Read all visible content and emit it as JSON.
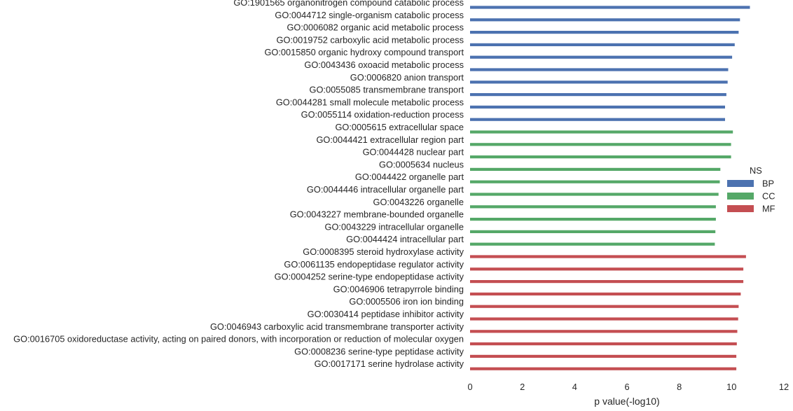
{
  "chart_data": {
    "type": "bar",
    "orientation": "horizontal",
    "xlabel": "p value(-log10)",
    "ylabel": "",
    "xlim": [
      0,
      12
    ],
    "xticks": [
      "0",
      "2",
      "4",
      "6",
      "8",
      "10",
      "12"
    ],
    "grid": false,
    "legend": {
      "title": "NS",
      "placement": "right",
      "entries": [
        {
          "name": "BP",
          "color": "#4c72b0"
        },
        {
          "name": "CC",
          "color": "#55a868"
        },
        {
          "name": "MF",
          "color": "#c44e52"
        }
      ]
    },
    "categories": [
      {
        "label": "GO:1901565 organonitrogen compound catabolic process",
        "ns": "BP",
        "value": 10.7
      },
      {
        "label": "GO:0044712 single-organism catabolic process",
        "ns": "BP",
        "value": 10.32
      },
      {
        "label": "GO:0006082 organic acid metabolic process",
        "ns": "BP",
        "value": 10.27
      },
      {
        "label": "GO:0019752 carboxylic acid metabolic process",
        "ns": "BP",
        "value": 10.12
      },
      {
        "label": "GO:0015850 organic hydroxy compound transport",
        "ns": "BP",
        "value": 10.02
      },
      {
        "label": "GO:0043436 oxoacid metabolic process",
        "ns": "BP",
        "value": 9.87
      },
      {
        "label": "GO:0006820 anion transport",
        "ns": "BP",
        "value": 9.85
      },
      {
        "label": "GO:0055085 transmembrane transport",
        "ns": "BP",
        "value": 9.8
      },
      {
        "label": "GO:0044281 small molecule metabolic process",
        "ns": "BP",
        "value": 9.75
      },
      {
        "label": "GO:0055114 oxidation-reduction process",
        "ns": "BP",
        "value": 9.75
      },
      {
        "label": "GO:0005615 extracellular space",
        "ns": "CC",
        "value": 10.05
      },
      {
        "label": "GO:0044421 extracellular region part",
        "ns": "CC",
        "value": 9.98
      },
      {
        "label": "GO:0044428 nuclear part",
        "ns": "CC",
        "value": 9.98
      },
      {
        "label": "GO:0005634 nucleus",
        "ns": "CC",
        "value": 9.57
      },
      {
        "label": "GO:0044422 organelle part",
        "ns": "CC",
        "value": 9.55
      },
      {
        "label": "GO:0044446 intracellular organelle part",
        "ns": "CC",
        "value": 9.5
      },
      {
        "label": "GO:0043226 organelle",
        "ns": "CC",
        "value": 9.4
      },
      {
        "label": "GO:0043227 membrane-bounded organelle",
        "ns": "CC",
        "value": 9.4
      },
      {
        "label": "GO:0043229 intracellular organelle",
        "ns": "CC",
        "value": 9.38
      },
      {
        "label": "GO:0044424 intracellular part",
        "ns": "CC",
        "value": 9.36
      },
      {
        "label": "GO:0008395 steroid hydroxylase activity",
        "ns": "MF",
        "value": 10.55
      },
      {
        "label": "GO:0061135 endopeptidase regulator activity",
        "ns": "MF",
        "value": 10.45
      },
      {
        "label": "GO:0004252 serine-type endopeptidase activity",
        "ns": "MF",
        "value": 10.45
      },
      {
        "label": "GO:0046906 tetrapyrrole binding",
        "ns": "MF",
        "value": 10.35
      },
      {
        "label": "GO:0005506 iron ion binding",
        "ns": "MF",
        "value": 10.27
      },
      {
        "label": "GO:0030414 peptidase inhibitor activity",
        "ns": "MF",
        "value": 10.25
      },
      {
        "label": "GO:0046943 carboxylic acid transmembrane transporter activity",
        "ns": "MF",
        "value": 10.22
      },
      {
        "label": "GO:0016705 oxidoreductase activity, acting on paired donors, with incorporation or reduction of molecular oxygen",
        "ns": "MF",
        "value": 10.2
      },
      {
        "label": "GO:0008236 serine-type peptidase activity",
        "ns": "MF",
        "value": 10.18
      },
      {
        "label": "GO:0017171 serine hydrolase activity",
        "ns": "MF",
        "value": 10.18
      }
    ]
  }
}
